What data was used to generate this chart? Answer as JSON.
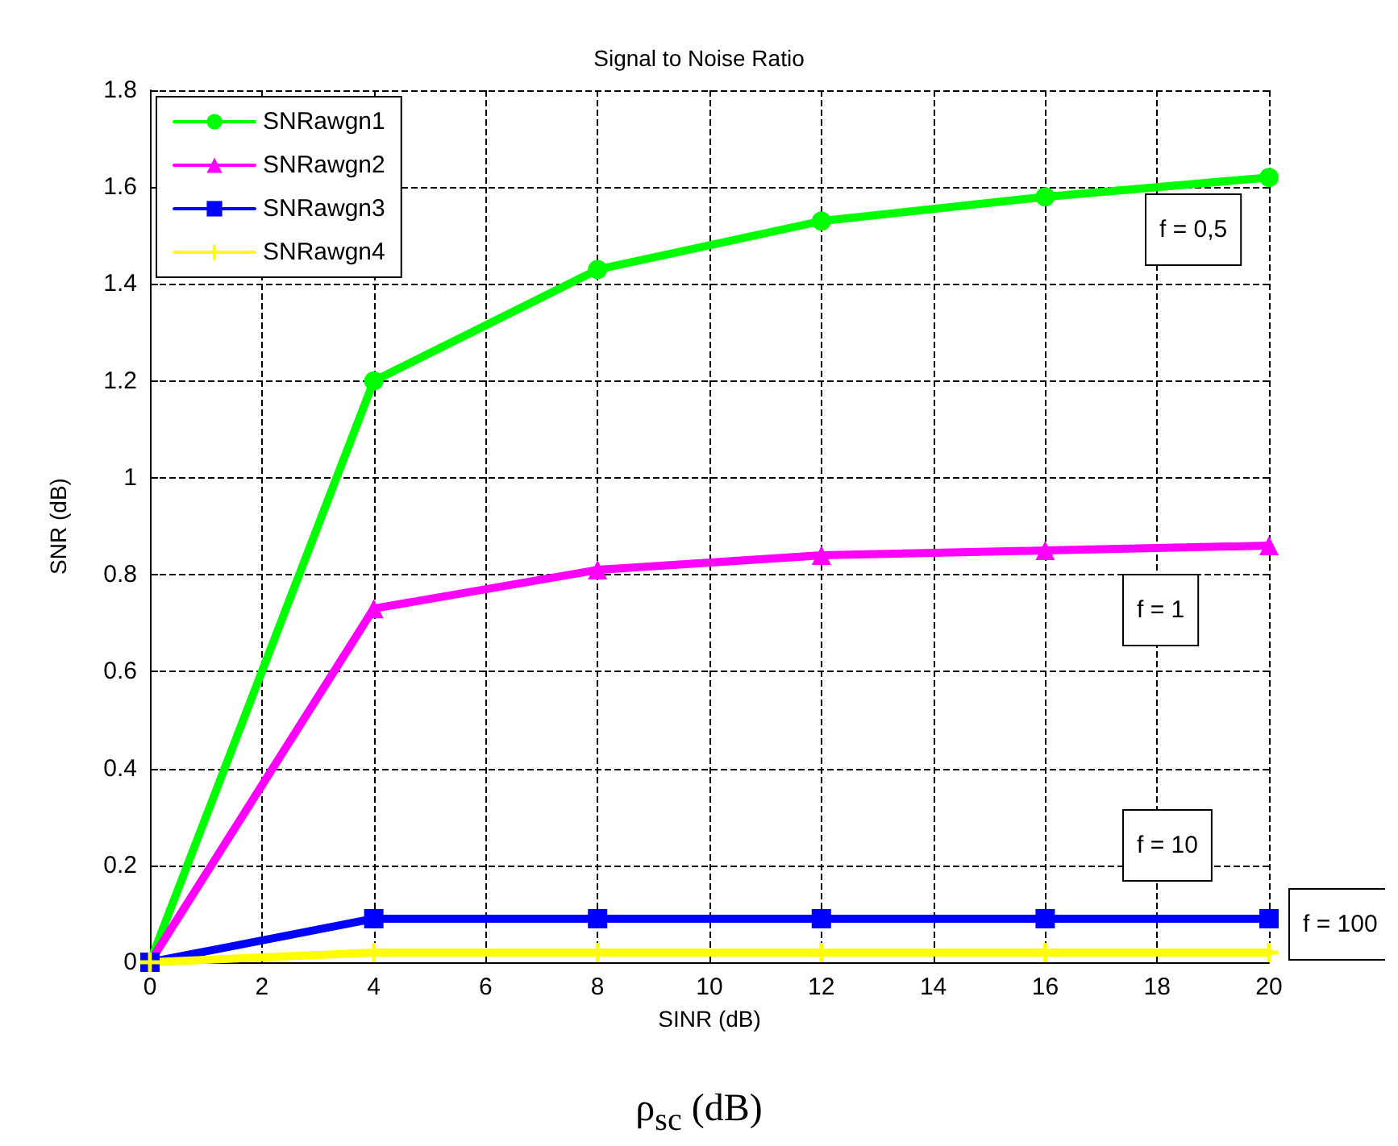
{
  "chart_data": {
    "type": "line",
    "title": "Signal to Noise Ratio",
    "xlabel": "SINR (dB)",
    "ylabel": "SNR (dB)",
    "x": [
      0,
      4,
      8,
      12,
      16,
      20
    ],
    "series": [
      {
        "name": "SNRawgn1",
        "color": "#00ff00",
        "marker": "circle",
        "values": [
          0,
          1.2,
          1.43,
          1.53,
          1.58,
          1.62
        ]
      },
      {
        "name": "SNRawgn2",
        "color": "#ff00ff",
        "marker": "triangle",
        "values": [
          0,
          0.73,
          0.81,
          0.84,
          0.85,
          0.86
        ]
      },
      {
        "name": "SNRawgn3",
        "color": "#0000ff",
        "marker": "square",
        "values": [
          0,
          0.09,
          0.09,
          0.09,
          0.09,
          0.09
        ]
      },
      {
        "name": "SNRawgn4",
        "color": "#ffff00",
        "marker": "cross",
        "values": [
          0,
          0.02,
          0.02,
          0.02,
          0.02,
          0.02
        ]
      }
    ],
    "xlim": [
      0,
      20
    ],
    "xticks": [
      0,
      2,
      4,
      6,
      8,
      10,
      12,
      14,
      16,
      18,
      20
    ],
    "ylim": [
      0,
      1.8
    ],
    "yticks": [
      0,
      0.2,
      0.4,
      0.6,
      0.8,
      1,
      1.2,
      1.4,
      1.6,
      1.8
    ],
    "grid": true,
    "legend": "top left",
    "line_style": "solid",
    "annotations": [
      "f = 0,5",
      "f = 1",
      "f = 10",
      "f = 100",
      "ρ$_{sc}$ (dB)"
    ]
  }
}
